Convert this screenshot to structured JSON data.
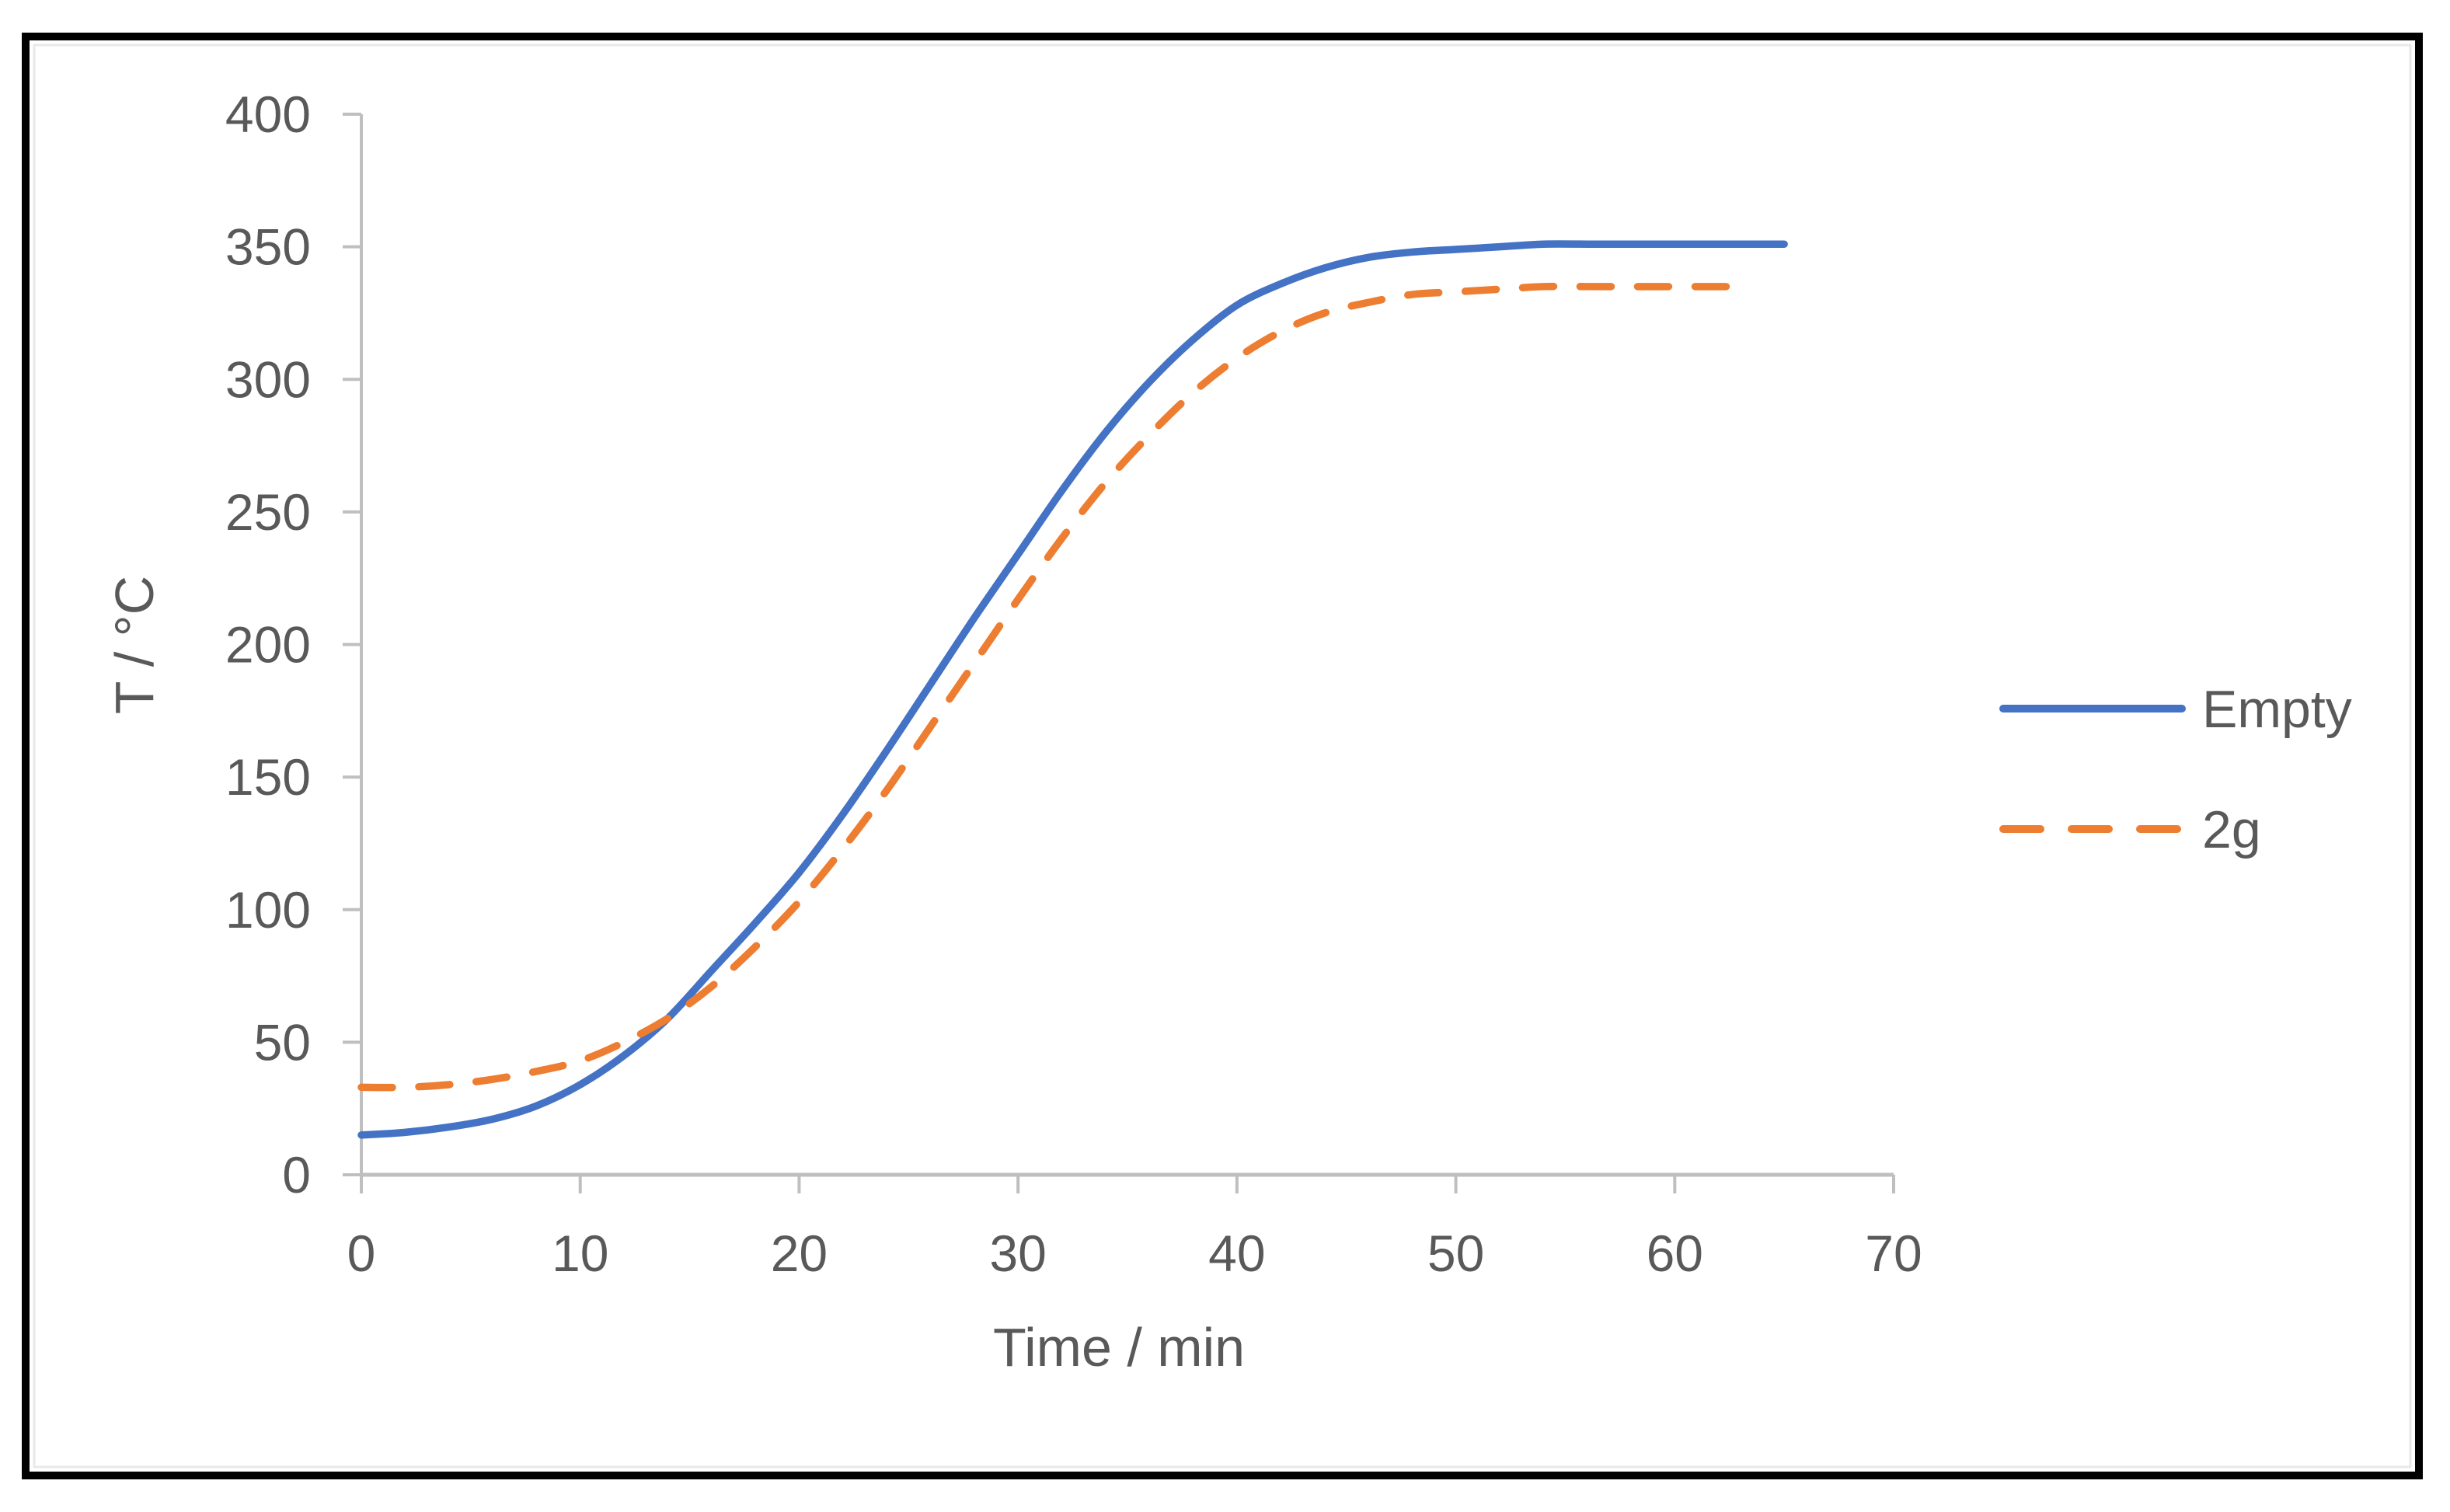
{
  "chart_data": {
    "type": "line",
    "title": "",
    "xlabel": "Time / min",
    "ylabel": "T / °C",
    "xlim": [
      0,
      70
    ],
    "ylim": [
      0,
      400
    ],
    "x_ticks": [
      0,
      10,
      20,
      30,
      40,
      50,
      60,
      70
    ],
    "y_ticks": [
      0,
      50,
      100,
      150,
      200,
      250,
      300,
      350,
      400
    ],
    "grid": false,
    "legend_position": "right",
    "series": [
      {
        "name": "Empty",
        "color": "#4472C4",
        "style": "solid",
        "x": [
          0,
          2,
          4,
          6,
          8,
          10,
          12,
          14,
          16,
          18,
          20,
          22,
          24,
          26,
          28,
          30,
          32,
          34,
          36,
          38,
          40,
          42,
          44,
          46,
          48,
          50,
          52,
          54,
          56,
          58,
          60,
          62,
          64,
          65
        ],
        "y": [
          15,
          16,
          18,
          21,
          26,
          34,
          45,
          59,
          77,
          95,
          114,
          136,
          160,
          185,
          210,
          234,
          258,
          280,
          299,
          315,
          328,
          336,
          342,
          346,
          348,
          349,
          350,
          351,
          351,
          351,
          351,
          351,
          351,
          351
        ]
      },
      {
        "name": "2g",
        "color": "#ED7D31",
        "style": "dashed",
        "x": [
          0,
          2,
          4,
          6,
          8,
          10,
          12,
          14,
          16,
          18,
          20,
          22,
          24,
          26,
          28,
          30,
          32,
          34,
          36,
          38,
          40,
          42,
          44,
          46,
          48,
          50,
          52,
          54,
          56,
          58,
          60,
          62,
          63
        ],
        "y": [
          33,
          33,
          34,
          36,
          39,
          43,
          50,
          59,
          71,
          86,
          103,
          123,
          145,
          169,
          193,
          217,
          240,
          261,
          279,
          295,
          308,
          318,
          325,
          329,
          332,
          333,
          334,
          335,
          335,
          335,
          335,
          335,
          335
        ]
      }
    ]
  }
}
